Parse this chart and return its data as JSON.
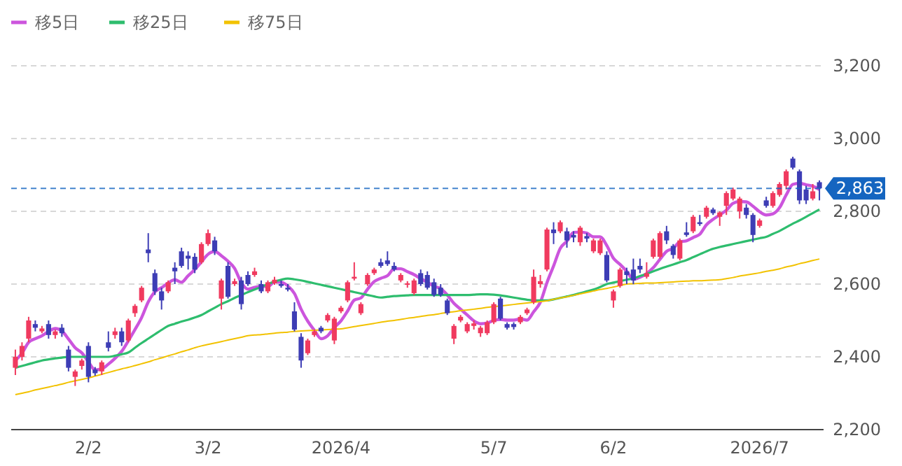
{
  "chart_data": {
    "type": "candlestick",
    "categories": [
      null,
      null,
      null,
      null,
      null,
      null,
      null,
      null,
      null,
      null,
      null,
      "2/2",
      null,
      null,
      null,
      null,
      null,
      null,
      null,
      null,
      null,
      null,
      null,
      null,
      null,
      null,
      null,
      null,
      null,
      "3/2",
      null,
      null,
      null,
      null,
      null,
      null,
      null,
      null,
      null,
      null,
      null,
      null,
      null,
      null,
      null,
      null,
      null,
      null,
      null,
      "2026/4",
      null,
      null,
      null,
      null,
      null,
      null,
      null,
      null,
      null,
      null,
      null,
      null,
      null,
      null,
      null,
      null,
      null,
      null,
      null,
      null,
      null,
      null,
      "5/7",
      null,
      null,
      null,
      null,
      null,
      null,
      null,
      null,
      null,
      null,
      null,
      null,
      null,
      null,
      null,
      null,
      null,
      "6/2",
      null,
      null,
      null,
      null,
      null,
      null,
      null,
      null,
      null,
      null,
      null,
      null,
      null,
      null,
      null,
      null,
      null,
      null,
      null,
      null,
      null,
      "2026/7",
      null,
      null,
      null,
      null,
      null,
      null,
      null,
      null,
      null
    ],
    "ohlc": [
      [
        2370,
        2420,
        2350,
        2400
      ],
      [
        2400,
        2440,
        2390,
        2430
      ],
      [
        2450,
        2510,
        2440,
        2500
      ],
      [
        2490,
        2500,
        2470,
        2480
      ],
      [
        2470,
        2485,
        2465,
        2478
      ],
      [
        2490,
        2500,
        2450,
        2460
      ],
      [
        2460,
        2475,
        2450,
        2470
      ],
      [
        2480,
        2490,
        2455,
        2465
      ],
      [
        2420,
        2430,
        2360,
        2370
      ],
      [
        2345,
        2365,
        2320,
        2360
      ],
      [
        2375,
        2395,
        2365,
        2390
      ],
      [
        2430,
        2440,
        2330,
        2345
      ],
      [
        2365,
        2372,
        2348,
        2355
      ],
      [
        2360,
        2390,
        2350,
        2385
      ],
      [
        2440,
        2470,
        2415,
        2425
      ],
      [
        2460,
        2480,
        2450,
        2470
      ],
      [
        2470,
        2480,
        2430,
        2440
      ],
      [
        2445,
        2505,
        2440,
        2500
      ],
      [
        2520,
        2545,
        2510,
        2540
      ],
      [
        2555,
        2595,
        2550,
        2590
      ],
      [
        2695,
        2740,
        2660,
        2685
      ],
      [
        2630,
        2640,
        2570,
        2580
      ],
      [
        2580,
        2590,
        2530,
        2555
      ],
      [
        2580,
        2610,
        2575,
        2605
      ],
      [
        2645,
        2660,
        2600,
        2635
      ],
      [
        2690,
        2700,
        2645,
        2650
      ],
      [
        2678,
        2690,
        2640,
        2670
      ],
      [
        2675,
        2685,
        2630,
        2640
      ],
      [
        2660,
        2715,
        2655,
        2710
      ],
      [
        2710,
        2750,
        2705,
        2740
      ],
      [
        2720,
        2730,
        2680,
        2690
      ],
      [
        2560,
        2615,
        2530,
        2610
      ],
      [
        2650,
        2660,
        2560,
        2565
      ],
      [
        2600,
        2615,
        2595,
        2608
      ],
      [
        2610,
        2620,
        2530,
        2545
      ],
      [
        2625,
        2635,
        2595,
        2600
      ],
      [
        2625,
        2645,
        2620,
        2635
      ],
      [
        2600,
        2610,
        2575,
        2580
      ],
      [
        2580,
        2610,
        2575,
        2605
      ],
      [
        2602,
        2620,
        2598,
        2612
      ],
      [
        2600,
        2610,
        2590,
        2595
      ],
      [
        2590,
        2600,
        2580,
        2585
      ],
      [
        2525,
        2550,
        2470,
        2475
      ],
      [
        2455,
        2465,
        2370,
        2390
      ],
      [
        2410,
        2450,
        2405,
        2445
      ],
      [
        2460,
        2475,
        2455,
        2470
      ],
      [
        2480,
        2485,
        2465,
        2470
      ],
      [
        2500,
        2520,
        2495,
        2515
      ],
      [
        2445,
        2510,
        2435,
        2505
      ],
      [
        2525,
        2540,
        2520,
        2535
      ],
      [
        2555,
        2610,
        2550,
        2605
      ],
      [
        2615,
        2660,
        2610,
        2620
      ],
      [
        2520,
        2550,
        2515,
        2545
      ],
      [
        2600,
        2630,
        2595,
        2625
      ],
      [
        2630,
        2645,
        2625,
        2640
      ],
      [
        2660,
        2670,
        2645,
        2650
      ],
      [
        2665,
        2690,
        2650,
        2655
      ],
      [
        2650,
        2660,
        2635,
        2640
      ],
      [
        2610,
        2630,
        2605,
        2625
      ],
      [
        2598,
        2608,
        2590,
        2602
      ],
      [
        2575,
        2615,
        2570,
        2610
      ],
      [
        2630,
        2640,
        2595,
        2600
      ],
      [
        2625,
        2635,
        2585,
        2590
      ],
      [
        2605,
        2615,
        2565,
        2570
      ],
      [
        2590,
        2600,
        2565,
        2570
      ],
      [
        2555,
        2560,
        2515,
        2520
      ],
      [
        2450,
        2490,
        2435,
        2485
      ],
      [
        2500,
        2515,
        2495,
        2510
      ],
      [
        2470,
        2495,
        2465,
        2490
      ],
      [
        2485,
        2500,
        2475,
        2492
      ],
      [
        2465,
        2485,
        2455,
        2480
      ],
      [
        2465,
        2500,
        2460,
        2495
      ],
      [
        2495,
        2550,
        2490,
        2545
      ],
      [
        2560,
        2565,
        2500,
        2505
      ],
      [
        2490,
        2495,
        2475,
        2480
      ],
      [
        2490,
        2495,
        2475,
        2482
      ],
      [
        2495,
        2515,
        2490,
        2510
      ],
      [
        2520,
        2535,
        2515,
        2530
      ],
      [
        2550,
        2640,
        2545,
        2620
      ],
      [
        2600,
        2625,
        2590,
        2608
      ],
      [
        2640,
        2755,
        2635,
        2750
      ],
      [
        2750,
        2770,
        2710,
        2740
      ],
      [
        2745,
        2775,
        2740,
        2770
      ],
      [
        2745,
        2755,
        2700,
        2720
      ],
      [
        2735,
        2745,
        2715,
        2728
      ],
      [
        2715,
        2760,
        2705,
        2755
      ],
      [
        2732,
        2740,
        2715,
        2725
      ],
      [
        2690,
        2725,
        2685,
        2720
      ],
      [
        2685,
        2725,
        2680,
        2720
      ],
      [
        2680,
        2690,
        2605,
        2610
      ],
      [
        2555,
        2585,
        2535,
        2580
      ],
      [
        2595,
        2645,
        2590,
        2640
      ],
      [
        2635,
        2645,
        2600,
        2625
      ],
      [
        2640,
        2670,
        2600,
        2610
      ],
      [
        2650,
        2670,
        2630,
        2640
      ],
      [
        2620,
        2660,
        2615,
        2630
      ],
      [
        2675,
        2725,
        2670,
        2720
      ],
      [
        2675,
        2745,
        2670,
        2740
      ],
      [
        2745,
        2760,
        2710,
        2720
      ],
      [
        2705,
        2710,
        2670,
        2680
      ],
      [
        2670,
        2725,
        2665,
        2720
      ],
      [
        2742,
        2770,
        2730,
        2735
      ],
      [
        2745,
        2790,
        2740,
        2785
      ],
      [
        2770,
        2790,
        2760,
        2765
      ],
      [
        2785,
        2815,
        2780,
        2810
      ],
      [
        2805,
        2810,
        2790,
        2795
      ],
      [
        2785,
        2800,
        2760,
        2797
      ],
      [
        2815,
        2855,
        2790,
        2850
      ],
      [
        2835,
        2865,
        2830,
        2860
      ],
      [
        2800,
        2840,
        2780,
        2835
      ],
      [
        2810,
        2820,
        2780,
        2790
      ],
      [
        2790,
        2795,
        2715,
        2735
      ],
      [
        2760,
        2780,
        2755,
        2775
      ],
      [
        2830,
        2840,
        2810,
        2815
      ],
      [
        2815,
        2855,
        2810,
        2850
      ],
      [
        2845,
        2880,
        2840,
        2875
      ],
      [
        2870,
        2915,
        2860,
        2910
      ],
      [
        2945,
        2950,
        2915,
        2920
      ],
      [
        2910,
        2915,
        2820,
        2830
      ],
      [
        2860,
        2870,
        2820,
        2830
      ],
      [
        2835,
        2875,
        2830,
        2855
      ],
      [
        2880,
        2885,
        2830,
        2863
      ]
    ],
    "colors": [
      "#f03a5f",
      "#f03a5f",
      "#f03a5f",
      "#3d3db5",
      "#f03a5f",
      "#3d3db5",
      "#f03a5f",
      "#3d3db5",
      "#3d3db5",
      "#f03a5f",
      "#f03a5f",
      "#3d3db5",
      "#3d3db5",
      "#f03a5f",
      "#3d3db5",
      "#f03a5f",
      "#3d3db5",
      "#f03a5f",
      "#f03a5f",
      "#f03a5f",
      "#3d3db5",
      "#3d3db5",
      "#3d3db5",
      "#f03a5f",
      "#3d3db5",
      "#3d3db5",
      "#3d3db5",
      "#3d3db5",
      "#f03a5f",
      "#f03a5f",
      "#3d3db5",
      "#f03a5f",
      "#3d3db5",
      "#f03a5f",
      "#3d3db5",
      "#3d3db5",
      "#f03a5f",
      "#3d3db5",
      "#f03a5f",
      "#f03a5f",
      "#3d3db5",
      "#3d3db5",
      "#3d3db5",
      "#3d3db5",
      "#f03a5f",
      "#f03a5f",
      "#3d3db5",
      "#f03a5f",
      "#f03a5f",
      "#f03a5f",
      "#f03a5f",
      "#f03a5f",
      "#f03a5f",
      "#f03a5f",
      "#f03a5f",
      "#3d3db5",
      "#3d3db5",
      "#3d3db5",
      "#f03a5f",
      "#f03a5f",
      "#f03a5f",
      "#3d3db5",
      "#3d3db5",
      "#3d3db5",
      "#3d3db5",
      "#3d3db5",
      "#f03a5f",
      "#f03a5f",
      "#f03a5f",
      "#f03a5f",
      "#f03a5f",
      "#f03a5f",
      "#f03a5f",
      "#3d3db5",
      "#3d3db5",
      "#3d3db5",
      "#f03a5f",
      "#f03a5f",
      "#f03a5f",
      "#f03a5f",
      "#f03a5f",
      "#3d3db5",
      "#f03a5f",
      "#3d3db5",
      "#3d3db5",
      "#f03a5f",
      "#3d3db5",
      "#f03a5f",
      "#f03a5f",
      "#3d3db5",
      "#f03a5f",
      "#f03a5f",
      "#3d3db5",
      "#3d3db5",
      "#3d3db5",
      "#f03a5f",
      "#f03a5f",
      "#f03a5f",
      "#3d3db5",
      "#3d3db5",
      "#f03a5f",
      "#3d3db5",
      "#f03a5f",
      "#3d3db5",
      "#f03a5f",
      "#3d3db5",
      "#f03a5f",
      "#f03a5f",
      "#f03a5f",
      "#f03a5f",
      "#3d3db5",
      "#3d3db5",
      "#f03a5f",
      "#3d3db5",
      "#f03a5f",
      "#f03a5f",
      "#f03a5f",
      "#3d3db5",
      "#3d3db5",
      "#3d3db5",
      "#f03a5f",
      "#3d3db5"
    ],
    "series": [
      {
        "name": "移5日",
        "type": "line",
        "color": "#cc55dd",
        "values": [
          2390,
          2410,
          2440,
          2450,
          2458,
          2470,
          2478,
          2471,
          2449,
          2425,
          2411,
          2386,
          2364,
          2367,
          2380,
          2396,
          2415,
          2444,
          2475,
          2508,
          2551,
          2579,
          2590,
          2603,
          2612,
          2605,
          2623,
          2640,
          2661,
          2682,
          2690,
          2678,
          2663,
          2643,
          2604,
          2586,
          2591,
          2594,
          2593,
          2606,
          2605,
          2595,
          2574,
          2531,
          2498,
          2473,
          2450,
          2458,
          2481,
          2499,
          2526,
          2556,
          2562,
          2586,
          2607,
          2616,
          2623,
          2642,
          2642,
          2634,
          2626,
          2615,
          2605,
          2594,
          2588,
          2570,
          2547,
          2531,
          2515,
          2499,
          2491,
          2493,
          2500,
          2503,
          2501,
          2501,
          2504,
          2501,
          2524,
          2550,
          2604,
          2650,
          2698,
          2718,
          2742,
          2743,
          2740,
          2730,
          2730,
          2706,
          2671,
          2654,
          2635,
          2613,
          2619,
          2629,
          2645,
          2668,
          2690,
          2698,
          2716,
          2719,
          2728,
          2737,
          2763,
          2778,
          2790,
          2803,
          2822,
          2827,
          2826,
          2814,
          2799,
          2790,
          2793,
          2810,
          2845,
          2874,
          2877,
          2873,
          2869,
          2860
        ]
      },
      {
        "name": "移25日",
        "type": "line",
        "color": "#2ebd6e",
        "values": [
          2370,
          2375,
          2380,
          2385,
          2390,
          2393,
          2396,
          2398,
          2400,
          2400,
          2400,
          2400,
          2400,
          2400,
          2400,
          2403,
          2407,
          2412,
          2425,
          2438,
          2450,
          2462,
          2474,
          2485,
          2491,
          2497,
          2502,
          2508,
          2515,
          2525,
          2535,
          2545,
          2553,
          2562,
          2570,
          2578,
          2585,
          2592,
          2600,
          2607,
          2612,
          2615,
          2613,
          2610,
          2606,
          2602,
          2598,
          2594,
          2590,
          2586,
          2582,
          2578,
          2574,
          2570,
          2566,
          2563,
          2565,
          2567,
          2568,
          2569,
          2570,
          2570,
          2570,
          2570,
          2570,
          2570,
          2570,
          2570,
          2570,
          2571,
          2572,
          2572,
          2571,
          2569,
          2566,
          2563,
          2560,
          2557,
          2555,
          2555,
          2555,
          2558,
          2562,
          2566,
          2570,
          2575,
          2580,
          2585,
          2592,
          2600,
          2604,
          2608,
          2612,
          2616,
          2622,
          2628,
          2635,
          2642,
          2648,
          2654,
          2660,
          2666,
          2674,
          2682,
          2690,
          2697,
          2702,
          2706,
          2710,
          2714,
          2718,
          2722,
          2726,
          2730,
          2738,
          2746,
          2756,
          2766,
          2775,
          2785,
          2795,
          2805
        ]
      },
      {
        "name": "移75日",
        "type": "line",
        "color": "#f2c200",
        "values": [
          2296,
          2300,
          2304,
          2309,
          2313,
          2317,
          2321,
          2325,
          2330,
          2334,
          2338,
          2342,
          2347,
          2352,
          2357,
          2362,
          2367,
          2371,
          2376,
          2381,
          2386,
          2392,
          2397,
          2403,
          2408,
          2414,
          2419,
          2425,
          2430,
          2434,
          2438,
          2442,
          2446,
          2450,
          2454,
          2458,
          2460,
          2461,
          2463,
          2465,
          2467,
          2468,
          2470,
          2471,
          2472,
          2473,
          2474,
          2475,
          2476,
          2477,
          2480,
          2483,
          2486,
          2489,
          2492,
          2495,
          2498,
          2500,
          2503,
          2506,
          2508,
          2511,
          2514,
          2516,
          2519,
          2522,
          2524,
          2527,
          2529,
          2531,
          2533,
          2536,
          2538,
          2540,
          2542,
          2544,
          2546,
          2548,
          2550,
          2552,
          2554,
          2558,
          2562,
          2565,
          2569,
          2573,
          2577,
          2581,
          2585,
          2588,
          2592,
          2596,
          2600,
          2601,
          2602,
          2603,
          2603,
          2604,
          2605,
          2606,
          2607,
          2608,
          2609,
          2609,
          2610,
          2611,
          2612,
          2615,
          2618,
          2622,
          2625,
          2628,
          2631,
          2635,
          2638,
          2642,
          2647,
          2651,
          2656,
          2660,
          2665,
          2669
        ]
      }
    ],
    "ylim": [
      2200,
      3200
    ],
    "yticks": [
      {
        "value": 2200,
        "label": "2,200"
      },
      {
        "value": 2400,
        "label": "2,400"
      },
      {
        "value": 2600,
        "label": "2,600"
      },
      {
        "value": 2800,
        "label": "2,800"
      },
      {
        "value": 3000,
        "label": "3,000"
      },
      {
        "value": 3200,
        "label": "3,200"
      }
    ],
    "grid": "y",
    "legend": "top left",
    "ref_lines": [
      {
        "axis": "y",
        "value": 2863,
        "label": "2,863",
        "color": "#1565c0",
        "line_style": "dashed"
      }
    ]
  }
}
